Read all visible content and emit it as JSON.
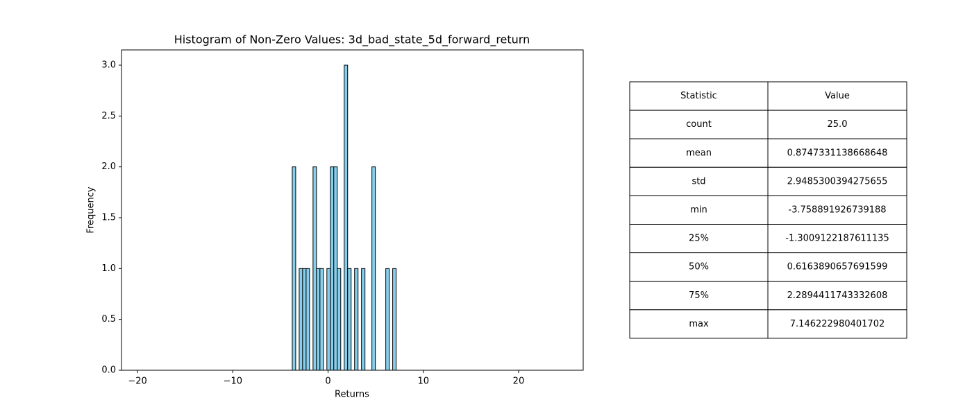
{
  "chart_data": {
    "type": "histogram",
    "title": "Histogram of Non-Zero Values: 3d_bad_state_5d_forward_return",
    "x_label": "Returns",
    "y_label": "Frequency",
    "bins": [
      -3.759,
      -3.395,
      -3.032,
      -2.668,
      -2.305,
      -1.941,
      -1.578,
      -1.214,
      -0.851,
      -0.487,
      -0.124,
      0.24,
      0.603,
      0.967,
      1.33,
      1.694,
      2.057,
      2.421,
      2.784,
      3.148,
      3.511,
      3.875,
      4.238,
      4.602,
      4.965,
      5.329,
      5.692,
      6.056,
      6.419,
      6.783,
      7.146
    ],
    "counts": [
      2,
      0,
      1,
      1,
      1,
      0,
      2,
      1,
      1,
      0,
      1,
      2,
      2,
      1,
      0,
      3,
      1,
      0,
      1,
      0,
      1,
      0,
      0,
      2,
      0,
      0,
      0,
      1,
      0,
      1
    ],
    "color": "#87ceeb",
    "edgecolor": "#000000",
    "xlim": [
      -21.68,
      26.78
    ],
    "xticks": [
      {
        "value": -20,
        "label": "−20"
      },
      {
        "value": -10,
        "label": "−10"
      },
      0,
      10,
      20
    ],
    "ylim": [
      0,
      3.15
    ],
    "yticks": [
      {
        "value": 0,
        "label": "0.0"
      },
      {
        "value": 0.5,
        "label": "0.5"
      },
      {
        "value": 1,
        "label": "1.0"
      },
      {
        "value": 1.5,
        "label": "1.5"
      },
      {
        "value": 2,
        "label": "2.0"
      },
      {
        "value": 2.5,
        "label": "2.5"
      },
      {
        "value": 3,
        "label": "3.0"
      }
    ],
    "grid": false
  },
  "table": {
    "header": [
      "Statistic",
      "Value"
    ],
    "rows": [
      [
        "count",
        "25.0"
      ],
      [
        "mean",
        "0.8747331138668648"
      ],
      [
        "std",
        "2.9485300394275655"
      ],
      [
        "min",
        "-3.758891926739188"
      ],
      [
        "25%",
        "-1.3009122187611135"
      ],
      [
        "50%",
        "0.6163890657691599"
      ],
      [
        "75%",
        "2.2894411743332608"
      ],
      [
        "max",
        "7.146222980401702"
      ]
    ]
  }
}
